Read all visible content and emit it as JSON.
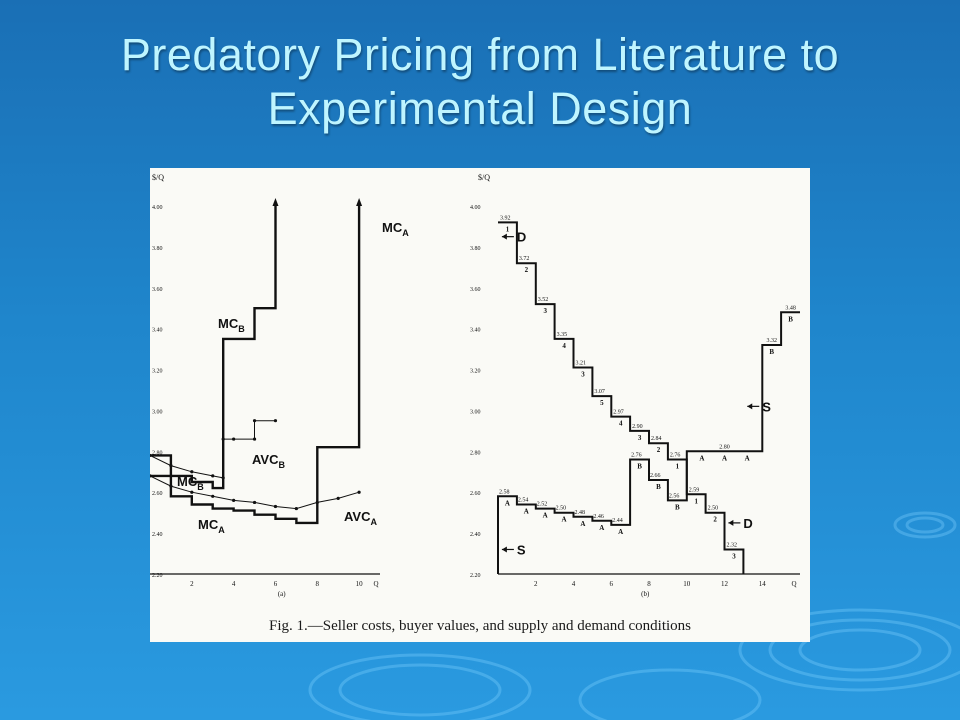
{
  "title": {
    "line1": "Predatory Pricing from Literature to",
    "line2": "Experimental Design"
  },
  "colors": {
    "title": "#bff5ff",
    "background": "#1f86cc",
    "figure_bg": "#fafaf6",
    "ink": "#111111"
  },
  "caption": "Fig. 1.—Seller costs, buyer values, and supply and demand conditions",
  "chart_data": [
    {
      "type": "line",
      "panel_label": "(a)",
      "ylabel": "$/Q",
      "xlabel": "Q",
      "ylim": [
        2.2,
        4.0
      ],
      "xlim": [
        0,
        11
      ],
      "y_ticks": [
        "4.00",
        "3.80",
        "3.60",
        "3.40",
        "3.20",
        "3.00",
        "2.80",
        "2.60",
        "2.40",
        "2.20"
      ],
      "y_tick_values": [
        4.0,
        3.8,
        3.6,
        3.4,
        3.2,
        3.0,
        2.8,
        2.6,
        2.4,
        2.2
      ],
      "x_ticks": [
        "2",
        "4",
        "6",
        "8",
        "10"
      ],
      "x_tick_values": [
        2,
        4,
        6,
        8,
        10
      ],
      "series": [
        {
          "name": "MC_A",
          "label_main": "MC",
          "label_sub": "A",
          "values": [
            [
              0,
              2.68
            ],
            [
              1,
              2.68
            ],
            [
              1,
              2.58
            ],
            [
              2,
              2.58
            ],
            [
              2,
              2.54
            ],
            [
              3,
              2.54
            ],
            [
              3,
              2.52
            ],
            [
              4,
              2.52
            ],
            [
              4,
              2.51
            ],
            [
              5,
              2.51
            ],
            [
              5,
              2.49
            ],
            [
              6,
              2.49
            ],
            [
              6,
              2.47
            ],
            [
              7,
              2.47
            ],
            [
              7,
              2.45
            ],
            [
              8,
              2.45
            ],
            [
              8,
              2.82
            ],
            [
              10,
              2.82
            ],
            [
              10,
              4.0
            ]
          ]
        },
        {
          "name": "MC_B",
          "label_main": "MC",
          "label_sub": "B",
          "values": [
            [
              0,
              2.78
            ],
            [
              1,
              2.78
            ],
            [
              1,
              2.68
            ],
            [
              2,
              2.68
            ],
            [
              2,
              2.65
            ],
            [
              3,
              2.65
            ],
            [
              3,
              2.62
            ],
            [
              3.5,
              2.62
            ],
            [
              3.5,
              3.35
            ],
            [
              5,
              3.35
            ],
            [
              5,
              3.5
            ],
            [
              6,
              3.5
            ],
            [
              6,
              4.0
            ]
          ]
        },
        {
          "name": "AVC_A",
          "label_main": "AVC",
          "label_sub": "A",
          "values": [
            [
              0,
              2.68
            ],
            [
              1,
              2.63
            ],
            [
              2,
              2.6
            ],
            [
              3,
              2.58
            ],
            [
              4,
              2.56
            ],
            [
              5,
              2.55
            ],
            [
              6,
              2.53
            ],
            [
              7,
              2.52
            ],
            [
              8,
              2.55
            ],
            [
              9,
              2.57
            ],
            [
              10,
              2.6
            ]
          ]
        },
        {
          "name": "AVC_B",
          "label_main": "AVC",
          "label_sub": "B",
          "values": [
            [
              0,
              2.78
            ],
            [
              1,
              2.73
            ],
            [
              2,
              2.7
            ],
            [
              3,
              2.68
            ],
            [
              3.5,
              2.67
            ],
            [
              3.5,
              2.86
            ],
            [
              4,
              2.86
            ],
            [
              5,
              2.86
            ],
            [
              5,
              2.95
            ],
            [
              6,
              2.95
            ]
          ]
        }
      ],
      "annotations": [
        {
          "text": "MC",
          "sub": "A"
        },
        {
          "text": "MC",
          "sub": "B"
        },
        {
          "text": "AVC",
          "sub": "A"
        },
        {
          "text": "AVC",
          "sub": "B"
        },
        {
          "text": "MC",
          "sub": "B"
        },
        {
          "text": "MC",
          "sub": "A"
        }
      ]
    },
    {
      "type": "line",
      "panel_label": "(b)",
      "ylabel": "$/Q",
      "xlabel": "Q",
      "ylim": [
        2.2,
        4.0
      ],
      "xlim": [
        0,
        16
      ],
      "y_ticks": [
        "4.00",
        "3.80",
        "3.60",
        "3.40",
        "3.20",
        "3.00",
        "2.80",
        "2.60",
        "2.40",
        "2.20"
      ],
      "y_tick_values": [
        4.0,
        3.8,
        3.6,
        3.4,
        3.2,
        3.0,
        2.8,
        2.6,
        2.4,
        2.2
      ],
      "x_ticks": [
        "2",
        "4",
        "6",
        "8",
        "10",
        "12",
        "14"
      ],
      "x_tick_values": [
        2,
        4,
        6,
        8,
        10,
        12,
        14
      ],
      "demand_steps": [
        3.92,
        3.72,
        3.52,
        3.35,
        3.21,
        3.07,
        2.97,
        2.9,
        2.84,
        2.76,
        2.59,
        2.5,
        2.32
      ],
      "demand_step_ids": [
        "1",
        "2",
        "3",
        "4",
        "3",
        "5",
        "4",
        "3",
        "2",
        "1",
        "1",
        "2",
        "3"
      ],
      "supply_steps_A": [
        2.58,
        2.54,
        2.52,
        2.5,
        2.48,
        2.46,
        2.44
      ],
      "supply_mid_B": [
        2.76,
        2.66,
        2.56
      ],
      "supply_top": [
        2.8,
        3.32,
        3.48
      ],
      "point_labels": [
        "3.92",
        "3.72",
        "3.52",
        "3.35",
        "3.21",
        "3.07",
        "2.97",
        "2.90",
        "2.84",
        "2.76",
        "2.59",
        "2.50",
        "2.32",
        "2.58",
        "2.54",
        "2.52",
        "2.50",
        "2.48",
        "2.46",
        "2.44",
        "2.76",
        "2.66",
        "2.56",
        "2.80",
        "3.32",
        "3.48"
      ],
      "curve_labels": {
        "demand": "D",
        "supply": "S"
      },
      "seller_marks": [
        "A",
        "B"
      ]
    }
  ]
}
